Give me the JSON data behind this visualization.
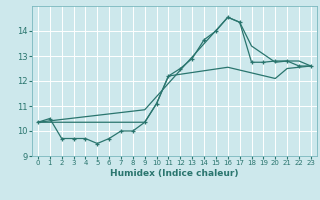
{
  "xlabel": "Humidex (Indice chaleur)",
  "bg_color": "#cde8ec",
  "grid_color": "#ffffff",
  "line_color": "#2a756e",
  "xlim": [
    -0.5,
    23.5
  ],
  "ylim": [
    9,
    15
  ],
  "xticks": [
    0,
    1,
    2,
    3,
    4,
    5,
    6,
    7,
    8,
    9,
    10,
    11,
    12,
    13,
    14,
    15,
    16,
    17,
    18,
    19,
    20,
    21,
    22,
    23
  ],
  "yticks": [
    9,
    10,
    11,
    12,
    13,
    14
  ],
  "line1_x": [
    0,
    1,
    2,
    3,
    4,
    5,
    6,
    7,
    8,
    9,
    10,
    11,
    12,
    13,
    14,
    15,
    16,
    17,
    18,
    19,
    20,
    21,
    22,
    23
  ],
  "line1_y": [
    10.35,
    10.5,
    9.7,
    9.7,
    9.7,
    9.5,
    9.7,
    10.0,
    10.0,
    10.35,
    11.1,
    12.2,
    12.5,
    12.9,
    13.65,
    14.0,
    14.55,
    14.35,
    12.75,
    12.75,
    12.8,
    12.8,
    12.6,
    12.6
  ],
  "line2_x": [
    0,
    9,
    16,
    17,
    18,
    20,
    21,
    22,
    23
  ],
  "line2_y": [
    10.35,
    10.85,
    14.55,
    14.35,
    13.4,
    12.75,
    12.8,
    12.8,
    12.6
  ],
  "line3_x": [
    0,
    9,
    10,
    11,
    16,
    20,
    21,
    22,
    23
  ],
  "line3_y": [
    10.35,
    10.35,
    11.1,
    12.2,
    12.55,
    12.1,
    12.5,
    12.55,
    12.6
  ]
}
